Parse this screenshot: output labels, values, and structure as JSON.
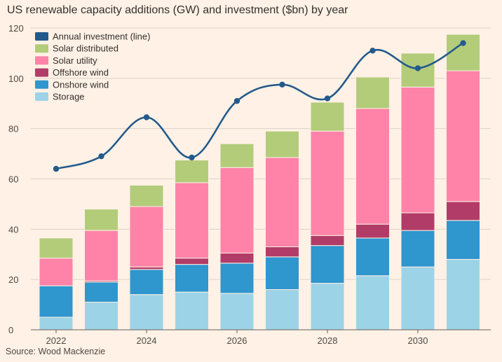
{
  "title": "US renewable capacity additions (GW) and investment ($bn) by year",
  "source": "Source: Wood Mackenzie",
  "colors": {
    "background": "#fff1e5",
    "grid": "#dcd2c9",
    "axis": "#66605c",
    "storage": "#9dd3e6",
    "onshore": "#2f96ce",
    "offshore": "#b23c68",
    "solar_utility": "#ff83a8",
    "solar_distributed": "#b3cc7a",
    "investment": "#235a8c"
  },
  "chart_data": {
    "type": "bar",
    "stacked": true,
    "title": "US renewable capacity additions (GW) and investment ($bn) by year",
    "x": [
      2022,
      2023,
      2024,
      2025,
      2026,
      2027,
      2028,
      2029,
      2030,
      2031
    ],
    "x_ticks": [
      "2022",
      "2024",
      "2026",
      "2028",
      "2030"
    ],
    "y_ticks": [
      "0",
      "20",
      "40",
      "60",
      "80",
      "100",
      "120"
    ],
    "ylim": [
      0,
      120
    ],
    "grid": true,
    "legend_position": "top-left",
    "series": [
      {
        "name": "Storage",
        "key": "storage",
        "values": [
          5,
          11,
          14,
          15,
          14.5,
          16,
          18.5,
          21.5,
          25,
          28
        ]
      },
      {
        "name": "Onshore wind",
        "key": "onshore",
        "values": [
          12.5,
          8,
          10,
          11,
          12,
          13,
          15,
          15,
          14.5,
          15.5
        ]
      },
      {
        "name": "Offshore wind",
        "key": "offshore",
        "values": [
          0,
          0.5,
          1,
          2.5,
          4,
          4,
          4,
          5.5,
          7,
          7.5
        ]
      },
      {
        "name": "Solar utility",
        "key": "solar_utility",
        "values": [
          11,
          20,
          24,
          30,
          34,
          35.5,
          41.5,
          46,
          50,
          52
        ]
      },
      {
        "name": "Solar distributed",
        "key": "solar_distributed",
        "values": [
          8,
          8.5,
          8.5,
          9,
          9.5,
          10.5,
          11.5,
          12.5,
          13.5,
          14.5
        ]
      }
    ],
    "line": {
      "name": "Annual investment (line)",
      "key": "investment",
      "values": [
        64,
        69,
        84.5,
        68.5,
        91,
        97.5,
        92,
        111,
        104,
        114
      ]
    },
    "legend": [
      {
        "label": "Annual investment (line)",
        "key": "investment"
      },
      {
        "label": "Solar distributed",
        "key": "solar_distributed"
      },
      {
        "label": "Solar utility",
        "key": "solar_utility"
      },
      {
        "label": "Offshore wind",
        "key": "offshore"
      },
      {
        "label": "Onshore wind",
        "key": "onshore"
      },
      {
        "label": "Storage",
        "key": "storage"
      }
    ]
  }
}
